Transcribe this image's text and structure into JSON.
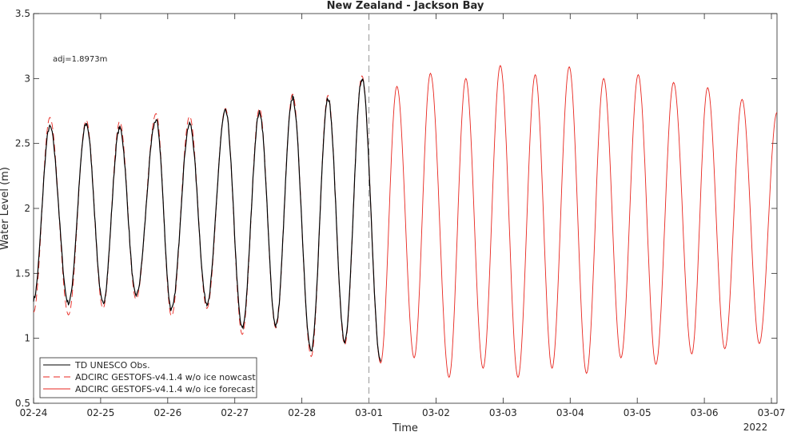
{
  "chart_data": {
    "type": "line",
    "title": "New Zealand - Jackson Bay",
    "xlabel": "Time",
    "ylabel": "Water Level (m)",
    "x_year_label": "2022",
    "annotation": "adj=1.8973m",
    "xlim": [
      "2022-02-24",
      "2022-03-07 02:00"
    ],
    "ylim": [
      0.5,
      3.5
    ],
    "x_ticks": [
      "02-24",
      "02-25",
      "02-26",
      "02-27",
      "02-28",
      "03-01",
      "03-02",
      "03-03",
      "03-04",
      "03-05",
      "03-06",
      "03-07"
    ],
    "y_ticks": [
      "0.5",
      "1",
      "1.5",
      "2",
      "2.5",
      "3",
      "3.5"
    ],
    "grid": false,
    "legend_position": "bottom-left",
    "nowcast_forecast_divider": "2022-03-01",
    "extrema": {
      "times": [
        "2022-02-24 00:00",
        "2022-02-24 05:50",
        "2022-02-24 12:30",
        "2022-02-24 18:50",
        "2022-02-25 00:50",
        "2022-02-25 06:50",
        "2022-02-25 12:40",
        "2022-02-25 19:50",
        "2022-02-26 01:20",
        "2022-02-26 07:50",
        "2022-02-26 14:00",
        "2022-02-26 20:40",
        "2022-02-27 02:40",
        "2022-02-27 08:50",
        "2022-02-27 14:40",
        "2022-02-27 20:40",
        "2022-02-28 03:20",
        "2022-02-28 09:20",
        "2022-02-28 15:20",
        "2022-02-28 21:30",
        "2022-03-01 04:10",
        "2022-03-01 10:00",
        "2022-03-01 16:10",
        "2022-03-01 22:00",
        "2022-03-02 04:40",
        "2022-03-02 10:40",
        "2022-03-02 16:50",
        "2022-03-02 23:00",
        "2022-03-03 05:20",
        "2022-03-03 11:30",
        "2022-03-03 17:30",
        "2022-03-03 23:40",
        "2022-03-04 05:50",
        "2022-03-04 12:00",
        "2022-03-04 18:10",
        "2022-03-05 00:20",
        "2022-03-05 06:40",
        "2022-03-05 13:00",
        "2022-03-05 19:30",
        "2022-03-06 01:10",
        "2022-03-06 07:20",
        "2022-03-06 13:30",
        "2022-03-06 19:40",
        "2022-03-07 02:00"
      ],
      "observed": [
        1.3,
        2.63,
        1.27,
        2.65,
        1.27,
        2.62,
        1.33,
        2.68,
        1.22,
        2.65,
        1.27,
        2.75,
        1.08,
        2.74,
        1.1,
        2.85,
        0.9,
        2.85,
        0.97,
        3.0,
        0.82,
        null,
        null,
        null,
        null,
        null,
        null,
        null,
        null,
        null,
        null,
        null,
        null,
        null,
        null,
        null,
        null,
        null,
        null,
        null,
        null,
        null,
        null,
        null
      ],
      "model": [
        1.2,
        2.7,
        1.18,
        2.68,
        1.23,
        2.67,
        1.3,
        2.73,
        1.17,
        2.71,
        1.23,
        2.77,
        1.03,
        2.77,
        1.08,
        2.88,
        0.86,
        2.87,
        0.95,
        3.02,
        0.81,
        2.94,
        0.85,
        3.04,
        0.7,
        3.0,
        0.77,
        3.1,
        0.7,
        3.03,
        0.77,
        3.09,
        0.73,
        3.0,
        0.85,
        3.03,
        0.8,
        2.97,
        0.88,
        2.93,
        0.92,
        2.84,
        0.96,
        2.74
      ]
    },
    "series": [
      {
        "name": "TD UNESCO Obs.",
        "color": "#000000",
        "style": "solid",
        "range": [
          "2022-02-24",
          "2022-03-01 04:30"
        ]
      },
      {
        "name": "ADCIRC GESTOFS-v4.1.4 w/o ice nowcast",
        "color": "#e8261f",
        "style": "dashed",
        "range": [
          "2022-02-24",
          "2022-03-01"
        ]
      },
      {
        "name": "ADCIRC GESTOFS-v4.1.4 w/o ice forecast",
        "color": "#e8261f",
        "style": "solid",
        "range": [
          "2022-03-01",
          "2022-03-07 02:00"
        ]
      }
    ]
  }
}
